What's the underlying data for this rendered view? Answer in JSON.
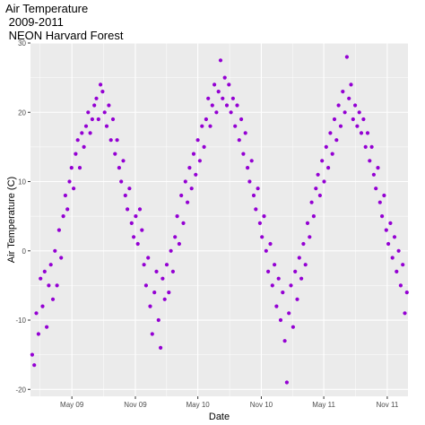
{
  "chart_data": {
    "type": "scatter",
    "title_lines": [
      "Air Temperature",
      " 2009-2011",
      " NEON Harvard Forest"
    ],
    "xlabel": "Date",
    "ylabel": "Air Temperature (C)",
    "xlim": [
      "2009-01-01",
      "2011-12-31"
    ],
    "ylim": [
      -21,
      30
    ],
    "x_ticks": [
      {
        "date": "2009-05-01",
        "label": "May 09"
      },
      {
        "date": "2009-11-01",
        "label": "Nov 09"
      },
      {
        "date": "2010-05-01",
        "label": "May 10"
      },
      {
        "date": "2010-11-01",
        "label": "Nov 10"
      },
      {
        "date": "2011-05-01",
        "label": "May 11"
      },
      {
        "date": "2011-11-01",
        "label": "Nov 11"
      }
    ],
    "y_ticks": [
      -20,
      -10,
      0,
      10,
      20,
      30
    ],
    "grid": true,
    "point_color": "#9400d3",
    "panel_color": "#ebebeb",
    "series": [
      {
        "points": [
          {
            "x": "2009-01-06",
            "y": -15
          },
          {
            "x": "2009-01-12",
            "y": -16.5
          },
          {
            "x": "2009-01-18",
            "y": -9
          },
          {
            "x": "2009-01-24",
            "y": -12
          },
          {
            "x": "2009-01-30",
            "y": -4
          },
          {
            "x": "2009-02-05",
            "y": -8
          },
          {
            "x": "2009-02-11",
            "y": -3
          },
          {
            "x": "2009-02-17",
            "y": -11
          },
          {
            "x": "2009-02-23",
            "y": -5
          },
          {
            "x": "2009-03-01",
            "y": -2
          },
          {
            "x": "2009-03-07",
            "y": -7
          },
          {
            "x": "2009-03-13",
            "y": 0
          },
          {
            "x": "2009-03-19",
            "y": -5
          },
          {
            "x": "2009-03-25",
            "y": 3
          },
          {
            "x": "2009-03-31",
            "y": -1
          },
          {
            "x": "2009-04-06",
            "y": 5
          },
          {
            "x": "2009-04-12",
            "y": 8
          },
          {
            "x": "2009-04-18",
            "y": 6
          },
          {
            "x": "2009-04-24",
            "y": 10
          },
          {
            "x": "2009-04-30",
            "y": 12
          },
          {
            "x": "2009-05-06",
            "y": 9
          },
          {
            "x": "2009-05-12",
            "y": 14
          },
          {
            "x": "2009-05-18",
            "y": 16
          },
          {
            "x": "2009-05-24",
            "y": 12
          },
          {
            "x": "2009-05-30",
            "y": 17
          },
          {
            "x": "2009-06-05",
            "y": 15
          },
          {
            "x": "2009-06-11",
            "y": 18
          },
          {
            "x": "2009-06-17",
            "y": 20
          },
          {
            "x": "2009-06-23",
            "y": 17
          },
          {
            "x": "2009-06-29",
            "y": 19
          },
          {
            "x": "2009-07-05",
            "y": 21
          },
          {
            "x": "2009-07-11",
            "y": 22
          },
          {
            "x": "2009-07-17",
            "y": 19
          },
          {
            "x": "2009-07-23",
            "y": 24
          },
          {
            "x": "2009-07-29",
            "y": 23
          },
          {
            "x": "2009-08-04",
            "y": 20
          },
          {
            "x": "2009-08-10",
            "y": 18
          },
          {
            "x": "2009-08-16",
            "y": 21
          },
          {
            "x": "2009-08-22",
            "y": 16
          },
          {
            "x": "2009-08-28",
            "y": 19
          },
          {
            "x": "2009-09-03",
            "y": 14
          },
          {
            "x": "2009-09-09",
            "y": 16
          },
          {
            "x": "2009-09-15",
            "y": 12
          },
          {
            "x": "2009-09-21",
            "y": 10
          },
          {
            "x": "2009-09-27",
            "y": 13
          },
          {
            "x": "2009-10-03",
            "y": 8
          },
          {
            "x": "2009-10-09",
            "y": 6
          },
          {
            "x": "2009-10-15",
            "y": 9
          },
          {
            "x": "2009-10-21",
            "y": 4
          },
          {
            "x": "2009-10-27",
            "y": 2
          },
          {
            "x": "2009-11-02",
            "y": 5
          },
          {
            "x": "2009-11-08",
            "y": 1
          },
          {
            "x": "2009-11-14",
            "y": 6
          },
          {
            "x": "2009-11-20",
            "y": 3
          },
          {
            "x": "2009-11-26",
            "y": -2
          },
          {
            "x": "2009-12-02",
            "y": -5
          },
          {
            "x": "2009-12-08",
            "y": -1
          },
          {
            "x": "2009-12-14",
            "y": -8
          },
          {
            "x": "2009-12-20",
            "y": -12
          },
          {
            "x": "2009-12-26",
            "y": -6
          },
          {
            "x": "2010-01-01",
            "y": -3
          },
          {
            "x": "2010-01-07",
            "y": -10
          },
          {
            "x": "2010-01-13",
            "y": -14
          },
          {
            "x": "2010-01-19",
            "y": -4
          },
          {
            "x": "2010-01-25",
            "y": -7
          },
          {
            "x": "2010-01-31",
            "y": -2
          },
          {
            "x": "2010-02-06",
            "y": -6
          },
          {
            "x": "2010-02-12",
            "y": 0
          },
          {
            "x": "2010-02-18",
            "y": -3
          },
          {
            "x": "2010-02-24",
            "y": 2
          },
          {
            "x": "2010-03-02",
            "y": 5
          },
          {
            "x": "2010-03-08",
            "y": 1
          },
          {
            "x": "2010-03-14",
            "y": 8
          },
          {
            "x": "2010-03-20",
            "y": 4
          },
          {
            "x": "2010-03-26",
            "y": 10
          },
          {
            "x": "2010-04-01",
            "y": 7
          },
          {
            "x": "2010-04-07",
            "y": 12
          },
          {
            "x": "2010-04-13",
            "y": 9
          },
          {
            "x": "2010-04-19",
            "y": 14
          },
          {
            "x": "2010-04-25",
            "y": 11
          },
          {
            "x": "2010-05-01",
            "y": 16
          },
          {
            "x": "2010-05-07",
            "y": 13
          },
          {
            "x": "2010-05-13",
            "y": 18
          },
          {
            "x": "2010-05-19",
            "y": 15
          },
          {
            "x": "2010-05-25",
            "y": 19
          },
          {
            "x": "2010-05-31",
            "y": 22
          },
          {
            "x": "2010-06-06",
            "y": 18
          },
          {
            "x": "2010-06-12",
            "y": 21
          },
          {
            "x": "2010-06-18",
            "y": 24
          },
          {
            "x": "2010-06-24",
            "y": 20
          },
          {
            "x": "2010-06-30",
            "y": 23
          },
          {
            "x": "2010-07-06",
            "y": 27.5
          },
          {
            "x": "2010-07-12",
            "y": 22
          },
          {
            "x": "2010-07-18",
            "y": 25
          },
          {
            "x": "2010-07-24",
            "y": 21
          },
          {
            "x": "2010-07-30",
            "y": 24
          },
          {
            "x": "2010-08-05",
            "y": 20
          },
          {
            "x": "2010-08-11",
            "y": 22
          },
          {
            "x": "2010-08-17",
            "y": 18
          },
          {
            "x": "2010-08-23",
            "y": 21
          },
          {
            "x": "2010-08-29",
            "y": 16
          },
          {
            "x": "2010-09-04",
            "y": 19
          },
          {
            "x": "2010-09-10",
            "y": 14
          },
          {
            "x": "2010-09-16",
            "y": 17
          },
          {
            "x": "2010-09-22",
            "y": 12
          },
          {
            "x": "2010-09-28",
            "y": 10
          },
          {
            "x": "2010-10-04",
            "y": 13
          },
          {
            "x": "2010-10-10",
            "y": 8
          },
          {
            "x": "2010-10-16",
            "y": 6
          },
          {
            "x": "2010-10-22",
            "y": 9
          },
          {
            "x": "2010-10-28",
            "y": 4
          },
          {
            "x": "2010-11-03",
            "y": 2
          },
          {
            "x": "2010-11-09",
            "y": 5
          },
          {
            "x": "2010-11-15",
            "y": 0
          },
          {
            "x": "2010-11-21",
            "y": -3
          },
          {
            "x": "2010-11-27",
            "y": 1
          },
          {
            "x": "2010-12-03",
            "y": -5
          },
          {
            "x": "2010-12-09",
            "y": -2
          },
          {
            "x": "2010-12-15",
            "y": -8
          },
          {
            "x": "2010-12-21",
            "y": -4
          },
          {
            "x": "2010-12-27",
            "y": -10
          },
          {
            "x": "2011-01-02",
            "y": -6
          },
          {
            "x": "2011-01-08",
            "y": -13
          },
          {
            "x": "2011-01-14",
            "y": -19
          },
          {
            "x": "2011-01-20",
            "y": -9
          },
          {
            "x": "2011-01-26",
            "y": -5
          },
          {
            "x": "2011-02-01",
            "y": -11
          },
          {
            "x": "2011-02-07",
            "y": -3
          },
          {
            "x": "2011-02-13",
            "y": -7
          },
          {
            "x": "2011-02-19",
            "y": -1
          },
          {
            "x": "2011-02-25",
            "y": -4
          },
          {
            "x": "2011-03-03",
            "y": 1
          },
          {
            "x": "2011-03-09",
            "y": -2
          },
          {
            "x": "2011-03-15",
            "y": 4
          },
          {
            "x": "2011-03-21",
            "y": 2
          },
          {
            "x": "2011-03-27",
            "y": 7
          },
          {
            "x": "2011-04-02",
            "y": 5
          },
          {
            "x": "2011-04-08",
            "y": 9
          },
          {
            "x": "2011-04-14",
            "y": 11
          },
          {
            "x": "2011-04-20",
            "y": 8
          },
          {
            "x": "2011-04-26",
            "y": 13
          },
          {
            "x": "2011-05-02",
            "y": 10
          },
          {
            "x": "2011-05-08",
            "y": 15
          },
          {
            "x": "2011-05-14",
            "y": 12
          },
          {
            "x": "2011-05-20",
            "y": 17
          },
          {
            "x": "2011-05-26",
            "y": 14
          },
          {
            "x": "2011-06-01",
            "y": 19
          },
          {
            "x": "2011-06-07",
            "y": 16
          },
          {
            "x": "2011-06-13",
            "y": 21
          },
          {
            "x": "2011-06-19",
            "y": 18
          },
          {
            "x": "2011-06-25",
            "y": 23
          },
          {
            "x": "2011-07-01",
            "y": 20
          },
          {
            "x": "2011-07-07",
            "y": 28
          },
          {
            "x": "2011-07-13",
            "y": 22
          },
          {
            "x": "2011-07-19",
            "y": 24
          },
          {
            "x": "2011-07-25",
            "y": 19
          },
          {
            "x": "2011-07-31",
            "y": 21
          },
          {
            "x": "2011-08-06",
            "y": 18
          },
          {
            "x": "2011-08-12",
            "y": 20
          },
          {
            "x": "2011-08-18",
            "y": 17
          },
          {
            "x": "2011-08-24",
            "y": 19
          },
          {
            "x": "2011-08-30",
            "y": 15
          },
          {
            "x": "2011-09-05",
            "y": 17
          },
          {
            "x": "2011-09-11",
            "y": 13
          },
          {
            "x": "2011-09-17",
            "y": 15
          },
          {
            "x": "2011-09-23",
            "y": 11
          },
          {
            "x": "2011-09-29",
            "y": 9
          },
          {
            "x": "2011-10-05",
            "y": 12
          },
          {
            "x": "2011-10-11",
            "y": 7
          },
          {
            "x": "2011-10-17",
            "y": 5
          },
          {
            "x": "2011-10-23",
            "y": 8
          },
          {
            "x": "2011-10-29",
            "y": 3
          },
          {
            "x": "2011-11-04",
            "y": 1
          },
          {
            "x": "2011-11-10",
            "y": 4
          },
          {
            "x": "2011-11-16",
            "y": -1
          },
          {
            "x": "2011-11-22",
            "y": 2
          },
          {
            "x": "2011-11-28",
            "y": -3
          },
          {
            "x": "2011-12-04",
            "y": 0
          },
          {
            "x": "2011-12-10",
            "y": -5
          },
          {
            "x": "2011-12-16",
            "y": -2
          },
          {
            "x": "2011-12-22",
            "y": -9
          },
          {
            "x": "2011-12-28",
            "y": -6
          }
        ]
      }
    ]
  }
}
